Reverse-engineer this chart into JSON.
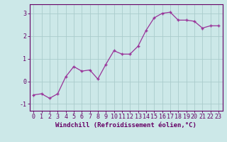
{
  "x": [
    0,
    1,
    2,
    3,
    4,
    5,
    6,
    7,
    8,
    9,
    10,
    11,
    12,
    13,
    14,
    15,
    16,
    17,
    18,
    19,
    20,
    21,
    22,
    23
  ],
  "y": [
    -0.6,
    -0.55,
    -0.75,
    -0.55,
    0.2,
    0.65,
    0.45,
    0.5,
    0.1,
    0.75,
    1.35,
    1.2,
    1.2,
    1.55,
    2.25,
    2.8,
    3.0,
    3.05,
    2.7,
    2.7,
    2.65,
    2.35,
    2.45,
    2.45
  ],
  "line_color": "#993399",
  "marker": "+",
  "marker_size": 3.5,
  "marker_linewidth": 1.0,
  "background_color": "#cce8e8",
  "grid_color": "#aacccc",
  "xlabel": "Windchill (Refroidissement éolien,°C)",
  "xlim": [
    -0.5,
    23.5
  ],
  "ylim": [
    -1.3,
    3.4
  ],
  "yticks": [
    -1,
    0,
    1,
    2,
    3
  ],
  "xticks": [
    0,
    1,
    2,
    3,
    4,
    5,
    6,
    7,
    8,
    9,
    10,
    11,
    12,
    13,
    14,
    15,
    16,
    17,
    18,
    19,
    20,
    21,
    22,
    23
  ],
  "xlabel_fontsize": 6.5,
  "tick_fontsize": 6.0,
  "label_color": "#660066",
  "spine_color": "#660066",
  "linewidth": 0.9
}
